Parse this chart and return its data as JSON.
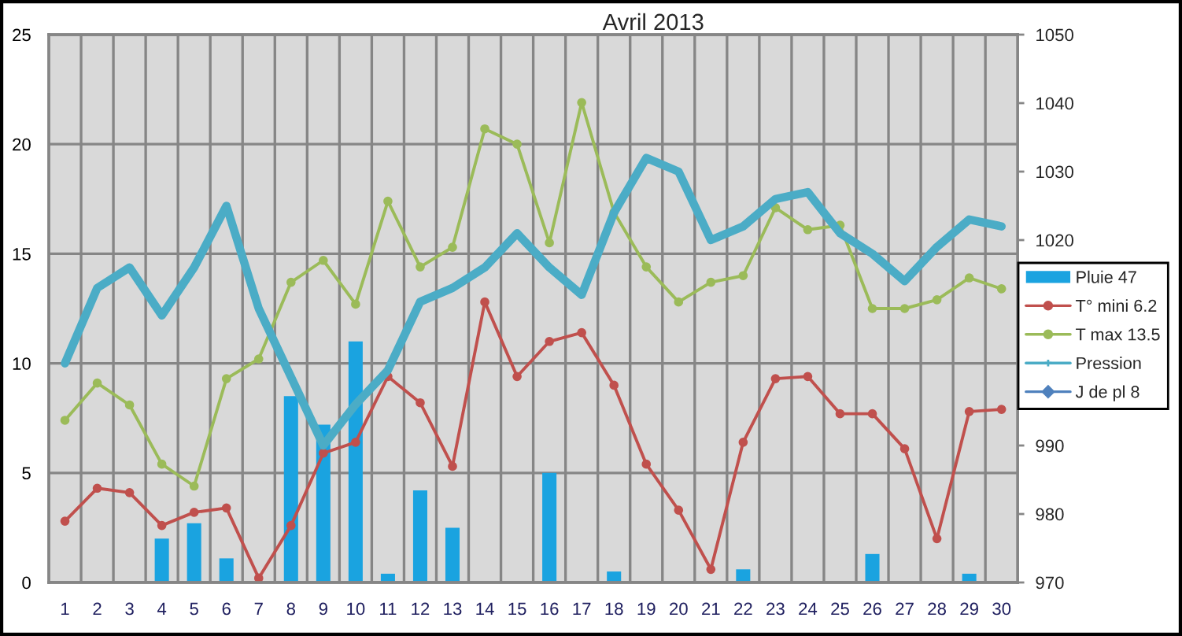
{
  "chart_data": {
    "type": "bar",
    "title": "Avril 2013",
    "categories": [
      "1",
      "2",
      "3",
      "4",
      "5",
      "6",
      "7",
      "8",
      "9",
      "10",
      "11",
      "12",
      "13",
      "14",
      "15",
      "16",
      "17",
      "18",
      "19",
      "20",
      "21",
      "22",
      "23",
      "24",
      "25",
      "26",
      "27",
      "28",
      "29",
      "30"
    ],
    "series": [
      {
        "name": "Pluie 47",
        "color": "#1aa3e0",
        "values": [
          null,
          null,
          null,
          2.0,
          2.7,
          1.1,
          null,
          8.5,
          7.2,
          11.0,
          0.4,
          4.2,
          2.5,
          null,
          null,
          5.0,
          null,
          0.5,
          null,
          null,
          null,
          0.6,
          null,
          null,
          null,
          1.3,
          null,
          null,
          0.4,
          null
        ]
      },
      {
        "name": "T° mini 6.2",
        "type": "line",
        "color": "#c0504d",
        "marker": "circle",
        "values": [
          2.8,
          4.3,
          4.1,
          2.6,
          3.2,
          3.4,
          0.2,
          2.6,
          5.9,
          6.4,
          9.4,
          8.2,
          5.3,
          12.8,
          9.4,
          11.0,
          11.4,
          9.0,
          5.4,
          3.3,
          0.6,
          6.4,
          9.3,
          9.4,
          7.7,
          7.7,
          6.1,
          2.0,
          7.8,
          7.9
        ]
      },
      {
        "name": "T max 13.5",
        "type": "line",
        "color": "#9bbb59",
        "marker": "circle",
        "values": [
          7.4,
          9.1,
          8.1,
          5.4,
          4.4,
          9.3,
          10.2,
          13.7,
          14.7,
          12.7,
          17.4,
          14.4,
          15.3,
          20.7,
          20.0,
          15.5,
          21.9,
          16.9,
          14.4,
          12.8,
          13.7,
          14.0,
          17.1,
          16.1,
          16.3,
          12.5,
          12.5,
          12.9,
          13.9,
          13.4
        ]
      },
      {
        "name": "Pression",
        "type": "line",
        "axis": "y2",
        "color": "#4bacc6",
        "marker": "none",
        "values": [
          1002,
          1013,
          1016,
          1009,
          1016,
          1025,
          1010,
          1000,
          990,
          996,
          1001,
          1011,
          1013,
          1016,
          1021,
          1016,
          1012,
          1024,
          1032,
          1030,
          1020,
          1022,
          1026,
          1027,
          1021,
          1018,
          1014,
          1019,
          1023,
          1022
        ]
      },
      {
        "name": "J de pl 8",
        "type": "line",
        "color": "#4f81bd",
        "marker": "diamond",
        "values": [
          null,
          null,
          null,
          null,
          null,
          null,
          null,
          null,
          null,
          null,
          null,
          null,
          null,
          null,
          null,
          null,
          null,
          null,
          null,
          null,
          null,
          null,
          null,
          null,
          null,
          null,
          null,
          null,
          null,
          null
        ]
      }
    ],
    "ylim": [
      0,
      25
    ],
    "yticks": [
      0,
      5,
      10,
      15,
      20,
      25
    ],
    "y2lim": [
      970,
      1050
    ],
    "y2ticks": [
      970,
      980,
      990,
      1020,
      1030,
      1040,
      1050
    ],
    "grid": true,
    "legend": "right"
  }
}
